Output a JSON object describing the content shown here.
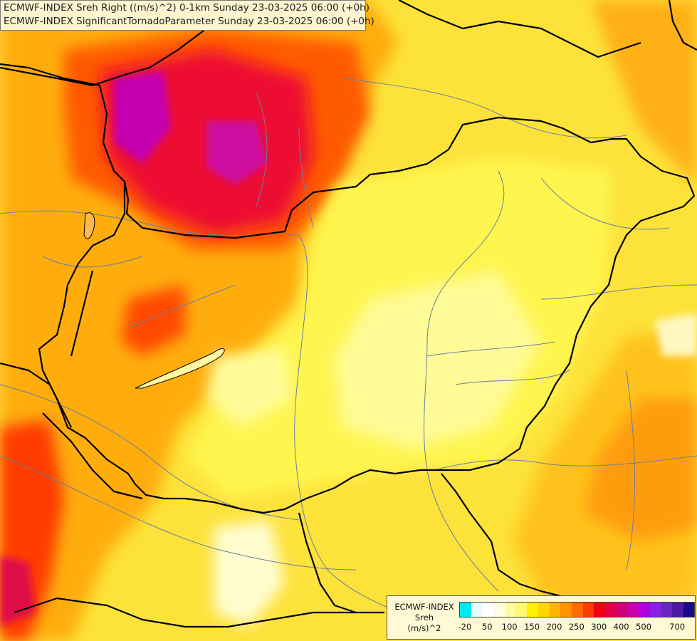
{
  "header": {
    "line1": "ECMWF-INDEX Sreh Right ((m/s)^2) 0-1km Sunday 23-03-2025 06:00 (+0h)",
    "line2": "ECMWF-INDEX SignificantTornadoParameter Sunday 23-03-2025 06:00 (+0h)"
  },
  "legend": {
    "source": "ECMWF-INDEX",
    "variable": "Sreh",
    "unit": "(m/s)^2",
    "colors": [
      "#00e8f0",
      "#e8fbff",
      "#ffffff",
      "#fffde0",
      "#fffba0",
      "#fff870",
      "#fff100",
      "#ffd600",
      "#ffb400",
      "#ff9400",
      "#ff6a00",
      "#ff3a00",
      "#f00010",
      "#e0004a",
      "#d0007a",
      "#c800b0",
      "#b000e0",
      "#8820e8",
      "#6828c0",
      "#4a1aa0",
      "#1a0a8a"
    ],
    "tick_labels": [
      "-20",
      "50",
      "100",
      "150",
      "200",
      "250",
      "300",
      "400",
      "500",
      "700"
    ],
    "tick_swatch_index": [
      0,
      2,
      4,
      6,
      8,
      10,
      12,
      14,
      16,
      19
    ]
  },
  "map": {
    "region": "Hungary and surrounding countries",
    "field_colors": {
      "low": "#fffba0",
      "mid": "#fff100",
      "mid_high": "#ffd600",
      "high": "#ffa500",
      "very_high": "#ff6a00",
      "extreme": "#e0004a",
      "peak": "#c800b0"
    },
    "border_color": "#000000",
    "river_color": "#6a7fa0"
  }
}
